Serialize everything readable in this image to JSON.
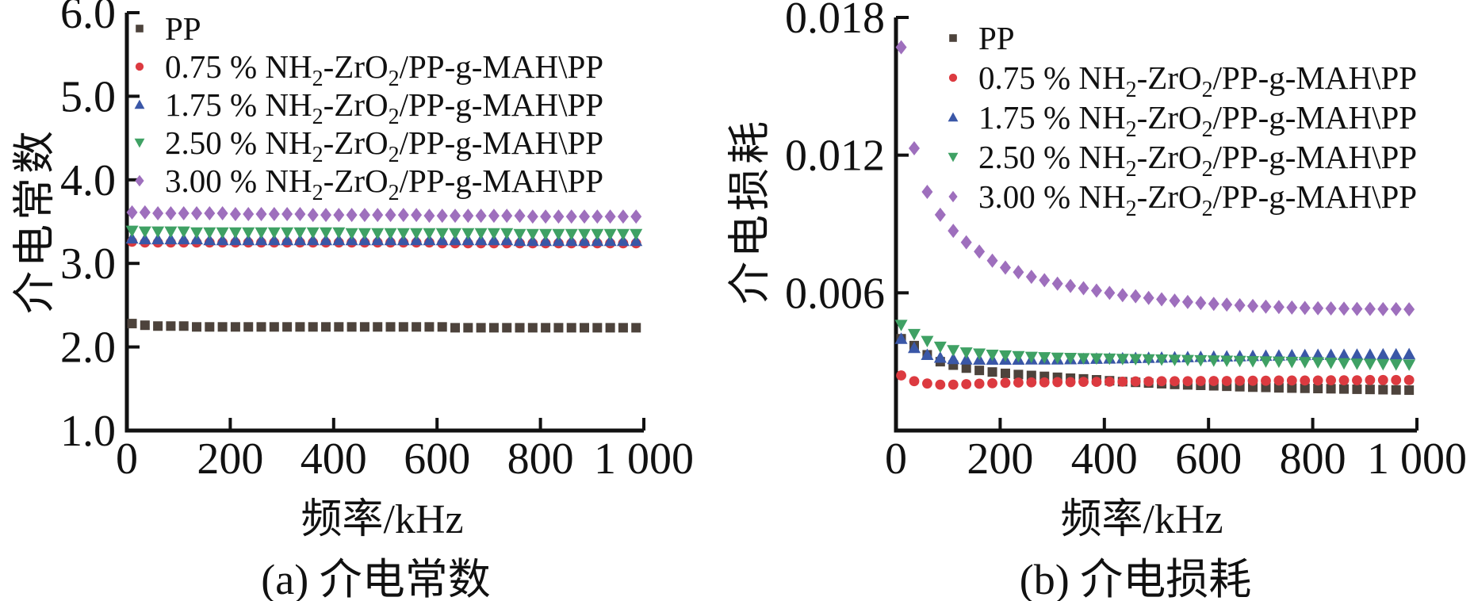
{
  "chart_data": [
    {
      "type": "scatter",
      "id": "a",
      "caption": "(a) 介电常数",
      "xlabel": "频率/kHz",
      "ylabel": "介电常数",
      "xlim": [
        0,
        1000
      ],
      "ylim": [
        1.0,
        6.0
      ],
      "grid": false,
      "legend_position": "top-left-inside",
      "x_ticks": {
        "values": [
          0,
          200,
          400,
          600,
          800,
          1000
        ],
        "labels": [
          "0",
          "200",
          "400",
          "600",
          "800",
          "1 000"
        ]
      },
      "y_ticks": {
        "values": [
          1,
          2,
          3,
          4,
          5,
          6
        ],
        "labels": [
          "1.0",
          "2.0",
          "3.0",
          "4.0",
          "5.0",
          "6.0"
        ]
      },
      "x": [
        10,
        35,
        60,
        85,
        110,
        135,
        160,
        185,
        210,
        235,
        260,
        285,
        310,
        335,
        360,
        385,
        410,
        435,
        460,
        485,
        510,
        535,
        560,
        585,
        610,
        635,
        660,
        685,
        710,
        735,
        760,
        785,
        810,
        835,
        860,
        885,
        910,
        935,
        960,
        985
      ],
      "series": [
        {
          "name": "PP",
          "marker": "square",
          "color": "#4D433C",
          "values": [
            2.28,
            2.26,
            2.25,
            2.25,
            2.25,
            2.24,
            2.24,
            2.24,
            2.24,
            2.24,
            2.24,
            2.24,
            2.24,
            2.24,
            2.24,
            2.24,
            2.24,
            2.24,
            2.24,
            2.24,
            2.24,
            2.24,
            2.24,
            2.24,
            2.24,
            2.23,
            2.23,
            2.23,
            2.23,
            2.23,
            2.23,
            2.23,
            2.23,
            2.23,
            2.23,
            2.23,
            2.23,
            2.23,
            2.23,
            2.23
          ]
        },
        {
          "name": "0.75 % NH₂-ZrO₂/PP-g-MAH\\PP",
          "marker": "circle",
          "color": "#DC3A40",
          "values": [
            3.26,
            3.25,
            3.25,
            3.25,
            3.25,
            3.25,
            3.25,
            3.25,
            3.25,
            3.25,
            3.25,
            3.25,
            3.25,
            3.25,
            3.25,
            3.25,
            3.25,
            3.25,
            3.25,
            3.25,
            3.25,
            3.25,
            3.25,
            3.25,
            3.24,
            3.24,
            3.24,
            3.24,
            3.24,
            3.24,
            3.24,
            3.24,
            3.24,
            3.24,
            3.24,
            3.24,
            3.24,
            3.24,
            3.24,
            3.24
          ]
        },
        {
          "name": "1.75 % NH₂-ZrO₂/PP-g-MAH\\PP",
          "marker": "triangle-up",
          "color": "#3A57A7",
          "values": [
            3.3,
            3.29,
            3.29,
            3.29,
            3.29,
            3.29,
            3.28,
            3.28,
            3.28,
            3.28,
            3.28,
            3.28,
            3.28,
            3.28,
            3.28,
            3.28,
            3.28,
            3.28,
            3.28,
            3.28,
            3.28,
            3.28,
            3.28,
            3.28,
            3.28,
            3.28,
            3.28,
            3.28,
            3.28,
            3.28,
            3.27,
            3.27,
            3.27,
            3.27,
            3.27,
            3.27,
            3.27,
            3.27,
            3.27,
            3.27
          ]
        },
        {
          "name": "2.50 % NH₂-ZrO₂/PP-g-MAH\\PP",
          "marker": "triangle-down",
          "color": "#3FA164",
          "values": [
            3.39,
            3.38,
            3.38,
            3.38,
            3.38,
            3.37,
            3.37,
            3.37,
            3.37,
            3.37,
            3.37,
            3.37,
            3.37,
            3.37,
            3.37,
            3.37,
            3.37,
            3.36,
            3.36,
            3.36,
            3.36,
            3.36,
            3.36,
            3.36,
            3.36,
            3.36,
            3.36,
            3.36,
            3.36,
            3.36,
            3.35,
            3.35,
            3.35,
            3.35,
            3.35,
            3.35,
            3.35,
            3.35,
            3.35,
            3.35
          ]
        },
        {
          "name": "3.00 % NH₂-ZrO₂/PP-g-MAH\\PP",
          "marker": "diamond",
          "color": "#9E6FBD",
          "values": [
            3.61,
            3.61,
            3.6,
            3.6,
            3.6,
            3.6,
            3.6,
            3.6,
            3.59,
            3.59,
            3.59,
            3.59,
            3.59,
            3.59,
            3.58,
            3.58,
            3.58,
            3.58,
            3.58,
            3.58,
            3.58,
            3.58,
            3.58,
            3.57,
            3.57,
            3.57,
            3.57,
            3.57,
            3.57,
            3.57,
            3.57,
            3.56,
            3.56,
            3.56,
            3.56,
            3.56,
            3.56,
            3.56,
            3.56,
            3.56
          ]
        }
      ]
    },
    {
      "type": "scatter",
      "id": "b",
      "caption": "(b) 介电损耗",
      "xlabel": "频率/kHz",
      "ylabel": "介电损耗",
      "xlim": [
        0,
        1000
      ],
      "ylim": [
        0,
        0.018
      ],
      "grid": false,
      "legend_position": "top-left-inside",
      "x_ticks": {
        "values": [
          0,
          200,
          400,
          600,
          800,
          1000
        ],
        "labels": [
          "0",
          "200",
          "400",
          "600",
          "800",
          "1 000"
        ]
      },
      "y_ticks": {
        "values": [
          0.006,
          0.012,
          0.018
        ],
        "labels": [
          "0.006",
          "0.012",
          "0.018"
        ]
      },
      "x": [
        10,
        35,
        60,
        85,
        110,
        135,
        160,
        185,
        210,
        235,
        260,
        285,
        310,
        335,
        360,
        385,
        410,
        435,
        460,
        485,
        510,
        535,
        560,
        585,
        610,
        635,
        660,
        685,
        710,
        735,
        760,
        785,
        810,
        835,
        860,
        885,
        910,
        935,
        960,
        985
      ],
      "series": [
        {
          "name": "PP",
          "marker": "square",
          "color": "#4D433C",
          "values": [
            0.004,
            0.0037,
            0.0033,
            0.003,
            0.00285,
            0.00272,
            0.00262,
            0.00255,
            0.00249,
            0.00244,
            0.0024,
            0.00236,
            0.00232,
            0.00228,
            0.00225,
            0.00221,
            0.00217,
            0.00213,
            0.0021,
            0.00207,
            0.00204,
            0.00201,
            0.00199,
            0.00197,
            0.00195,
            0.00193,
            0.00191,
            0.00189,
            0.00188,
            0.00186,
            0.00185,
            0.00184,
            0.00183,
            0.00182,
            0.00181,
            0.0018,
            0.00179,
            0.00178,
            0.00177,
            0.00176
          ]
        },
        {
          "name": "0.75 % NH₂-ZrO₂/PP-g-MAH\\PP",
          "marker": "circle",
          "color": "#DC3A40",
          "values": [
            0.0024,
            0.00215,
            0.00205,
            0.002,
            0.002,
            0.00202,
            0.00204,
            0.00206,
            0.00208,
            0.00209,
            0.0021,
            0.0021,
            0.00211,
            0.00211,
            0.00212,
            0.00212,
            0.00213,
            0.00213,
            0.00214,
            0.00214,
            0.00215,
            0.00215,
            0.00215,
            0.00216,
            0.00216,
            0.00216,
            0.00217,
            0.00217,
            0.00217,
            0.00218,
            0.00218,
            0.00218,
            0.00218,
            0.00219,
            0.00219,
            0.00219,
            0.0022,
            0.0022,
            0.0022,
            0.0022
          ]
        },
        {
          "name": "1.75 % NH₂-ZrO₂/PP-g-MAH\\PP",
          "marker": "triangle-up",
          "color": "#3A57A7",
          "values": [
            0.004,
            0.0036,
            0.0033,
            0.00318,
            0.00312,
            0.0031,
            0.00309,
            0.00309,
            0.00309,
            0.00309,
            0.0031,
            0.0031,
            0.0031,
            0.00311,
            0.00312,
            0.00313,
            0.00314,
            0.00315,
            0.00316,
            0.00317,
            0.00318,
            0.00319,
            0.0032,
            0.00321,
            0.00322,
            0.00323,
            0.00324,
            0.00325,
            0.00326,
            0.00327,
            0.00328,
            0.00329,
            0.0033,
            0.0033,
            0.0033,
            0.00331,
            0.00331,
            0.00332,
            0.00332,
            0.00333
          ]
        },
        {
          "name": "2.50 % NH₂-ZrO₂/PP-g-MAH\\PP",
          "marker": "triangle-down",
          "color": "#3FA164",
          "values": [
            0.0046,
            0.0042,
            0.0039,
            0.00365,
            0.0035,
            0.0034,
            0.00335,
            0.0033,
            0.00327,
            0.00324,
            0.00321,
            0.00319,
            0.00317,
            0.00316,
            0.00315,
            0.00314,
            0.00313,
            0.00312,
            0.00311,
            0.0031,
            0.00309,
            0.00308,
            0.00307,
            0.00306,
            0.00305,
            0.00304,
            0.00303,
            0.00302,
            0.00301,
            0.003,
            0.00299,
            0.00298,
            0.00297,
            0.00295,
            0.00293,
            0.00291,
            0.0029,
            0.00289,
            0.00288,
            0.00287
          ]
        },
        {
          "name": "3.00 % NH₂-ZrO₂/PP-g-MAH\\PP",
          "marker": "diamond",
          "color": "#9E6FBD",
          "values": [
            0.0167,
            0.0123,
            0.0104,
            0.0094,
            0.0087,
            0.0082,
            0.0078,
            0.0074,
            0.0071,
            0.0069,
            0.0067,
            0.00655,
            0.0064,
            0.0063,
            0.0062,
            0.0061,
            0.006,
            0.0059,
            0.00585,
            0.00578,
            0.00572,
            0.00566,
            0.0056,
            0.00556,
            0.00552,
            0.00549,
            0.00546,
            0.00543,
            0.0054,
            0.00538,
            0.00536,
            0.00534,
            0.00533,
            0.00532,
            0.00531,
            0.0053,
            0.0053,
            0.00529,
            0.00529,
            0.00528
          ]
        }
      ]
    }
  ],
  "style": {
    "axis_color": "#111111",
    "text_color": "#111111",
    "background": "#ffffff"
  }
}
